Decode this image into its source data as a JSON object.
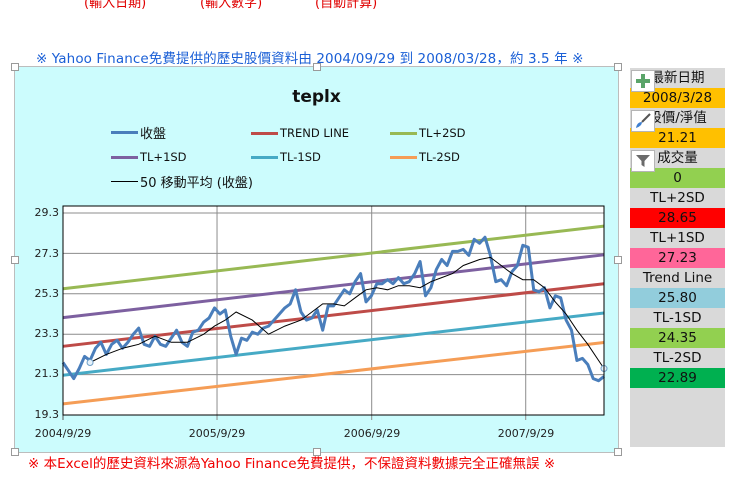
{
  "sheet": {
    "top_hints": [
      "(輸入日期)",
      "(輸入數字)",
      "(自動計算)"
    ],
    "source_note": "※ Yahoo Finance免費提供的歷史股價資料由 2004/09/29 到 2008/03/28，約 3.5 年 ※",
    "footer_note": "※ 本Excel的歷史資料來源為Yahoo Finance免費提供，不保證資料數據完全正確無誤 ※"
  },
  "panel": {
    "rows": [
      {
        "label": "最新日期",
        "bg": "#d9d9d9"
      },
      {
        "label": "2008/3/28",
        "bg": "#ffc000"
      },
      {
        "label": "股價/淨值",
        "bg": "#d9d9d9"
      },
      {
        "label": "21.21",
        "bg": "#ffc000"
      },
      {
        "label": "成交量",
        "bg": "#d9d9d9"
      },
      {
        "label": "0",
        "bg": "#92d050"
      },
      {
        "label": "TL+2SD",
        "bg": "#d9d9d9"
      },
      {
        "label": "28.65",
        "bg": "#ff0000"
      },
      {
        "label": "TL+1SD",
        "bg": "#d9d9d9"
      },
      {
        "label": "27.23",
        "bg": "#ff6699"
      },
      {
        "label": "Trend Line",
        "bg": "#d9d9d9"
      },
      {
        "label": "25.80",
        "bg": "#92cddc"
      },
      {
        "label": "TL-1SD",
        "bg": "#d9d9d9"
      },
      {
        "label": "24.35",
        "bg": "#92d050"
      },
      {
        "label": "TL-2SD",
        "bg": "#d9d9d9"
      },
      {
        "label": "22.89",
        "bg": "#00b050"
      }
    ]
  },
  "chart_tools": [
    "add-chart-element-icon",
    "chart-styles-icon",
    "chart-filters-icon"
  ],
  "chart_data": {
    "type": "line",
    "title": "teplx",
    "xlabel": "",
    "ylabel": "",
    "ylim": [
      19.3,
      29.7
    ],
    "yticks": [
      "29.3",
      "27.3",
      "25.3",
      "23.3",
      "21.3",
      "19.3"
    ],
    "xticks": [
      "2004/9/29",
      "2005/9/29",
      "2006/9/29",
      "2007/9/29"
    ],
    "grid": true,
    "legend_position": "top",
    "legend": [
      "收盤",
      "TREND LINE",
      "TL+2SD",
      "TL+1SD",
      "TL-1SD",
      "TL-2SD",
      "50 移動平均 (收盤)"
    ],
    "x_range": [
      "2004/9/29",
      "2008/3/28"
    ],
    "series": [
      {
        "name": "TREND LINE",
        "color": "#be4b48",
        "start": 22.7,
        "end": 25.8
      },
      {
        "name": "TL+2SD",
        "color": "#98b954",
        "start": 25.55,
        "end": 28.65
      },
      {
        "name": "TL+1SD",
        "color": "#7d60a0",
        "start": 24.12,
        "end": 27.23
      },
      {
        "name": "TL-1SD",
        "color": "#46aac5",
        "start": 21.27,
        "end": 24.35
      },
      {
        "name": "TL-2SD",
        "color": "#f59d56",
        "start": 19.85,
        "end": 22.89
      },
      {
        "name": "收盤",
        "color": "#4a7ebb",
        "t": [
          0,
          0.01,
          0.02,
          0.03,
          0.04,
          0.05,
          0.06,
          0.07,
          0.08,
          0.09,
          0.1,
          0.11,
          0.12,
          0.13,
          0.14,
          0.15,
          0.16,
          0.17,
          0.18,
          0.19,
          0.2,
          0.21,
          0.22,
          0.23,
          0.24,
          0.25,
          0.26,
          0.27,
          0.28,
          0.29,
          0.3,
          0.31,
          0.32,
          0.33,
          0.34,
          0.35,
          0.36,
          0.37,
          0.38,
          0.39,
          0.4,
          0.41,
          0.42,
          0.43,
          0.44,
          0.45,
          0.46,
          0.47,
          0.48,
          0.49,
          0.5,
          0.51,
          0.52,
          0.53,
          0.54,
          0.55,
          0.56,
          0.57,
          0.58,
          0.59,
          0.6,
          0.61,
          0.62,
          0.63,
          0.64,
          0.65,
          0.66,
          0.67,
          0.68,
          0.69,
          0.7,
          0.71,
          0.72,
          0.73,
          0.74,
          0.75,
          0.76,
          0.77,
          0.78,
          0.79,
          0.8,
          0.81,
          0.82,
          0.83,
          0.84,
          0.85,
          0.86,
          0.87,
          0.88,
          0.89,
          0.9,
          0.91,
          0.92,
          0.93,
          0.94,
          0.95,
          0.96,
          0.97,
          0.98,
          0.99,
          1.0
        ],
        "values": [
          21.9,
          21.5,
          21.1,
          21.6,
          22.2,
          22.0,
          22.6,
          22.9,
          22.3,
          22.8,
          23.0,
          22.6,
          22.9,
          23.3,
          23.6,
          22.8,
          22.7,
          23.2,
          22.8,
          22.7,
          23.1,
          23.5,
          22.9,
          22.7,
          23.4,
          23.5,
          23.9,
          24.1,
          24.6,
          24.3,
          24.5,
          23.2,
          22.3,
          23.1,
          23.0,
          23.4,
          23.3,
          23.6,
          23.7,
          24.0,
          24.3,
          24.6,
          24.8,
          25.5,
          24.4,
          24.0,
          24.1,
          24.5,
          23.5,
          24.7,
          24.7,
          25.1,
          25.5,
          25.3,
          25.9,
          26.3,
          24.9,
          25.2,
          25.8,
          25.8,
          26.0,
          25.8,
          26.1,
          25.8,
          25.9,
          26.3,
          26.9,
          25.2,
          25.6,
          26.5,
          27.0,
          26.7,
          27.4,
          27.4,
          27.5,
          27.2,
          28.0,
          27.8,
          28.1,
          27.2,
          25.9,
          26.0,
          25.7,
          26.4,
          26.7,
          27.7,
          27.6,
          25.5,
          25.4,
          25.6,
          24.6,
          25.2,
          25.1,
          24.0,
          23.5,
          22.0,
          22.1,
          21.8,
          21.1,
          21.0,
          21.21
        ]
      },
      {
        "name": "50 移動平均 (收盤)",
        "color": "#000000",
        "t": [
          0.05,
          0.08,
          0.11,
          0.14,
          0.17,
          0.2,
          0.23,
          0.26,
          0.28,
          0.3,
          0.32,
          0.35,
          0.38,
          0.41,
          0.44,
          0.46,
          0.48,
          0.5,
          0.52,
          0.54,
          0.56,
          0.58,
          0.6,
          0.62,
          0.64,
          0.66,
          0.68,
          0.7,
          0.72,
          0.74,
          0.77,
          0.79,
          0.81,
          0.83,
          0.85,
          0.87,
          0.89,
          0.91,
          0.93,
          0.95,
          0.97,
          0.99,
          1.0
        ],
        "values": [
          21.9,
          22.3,
          22.6,
          22.8,
          23.2,
          22.9,
          22.9,
          23.3,
          23.7,
          24.0,
          24.4,
          24.0,
          23.3,
          23.7,
          24.0,
          24.4,
          24.8,
          24.8,
          24.7,
          25.1,
          25.5,
          25.6,
          25.5,
          25.7,
          25.7,
          25.6,
          25.9,
          26.1,
          26.3,
          26.7,
          27.0,
          27.1,
          26.7,
          26.3,
          26.0,
          26.0,
          25.6,
          24.9,
          24.3,
          23.5,
          22.8,
          22.0,
          21.6
        ]
      }
    ]
  }
}
